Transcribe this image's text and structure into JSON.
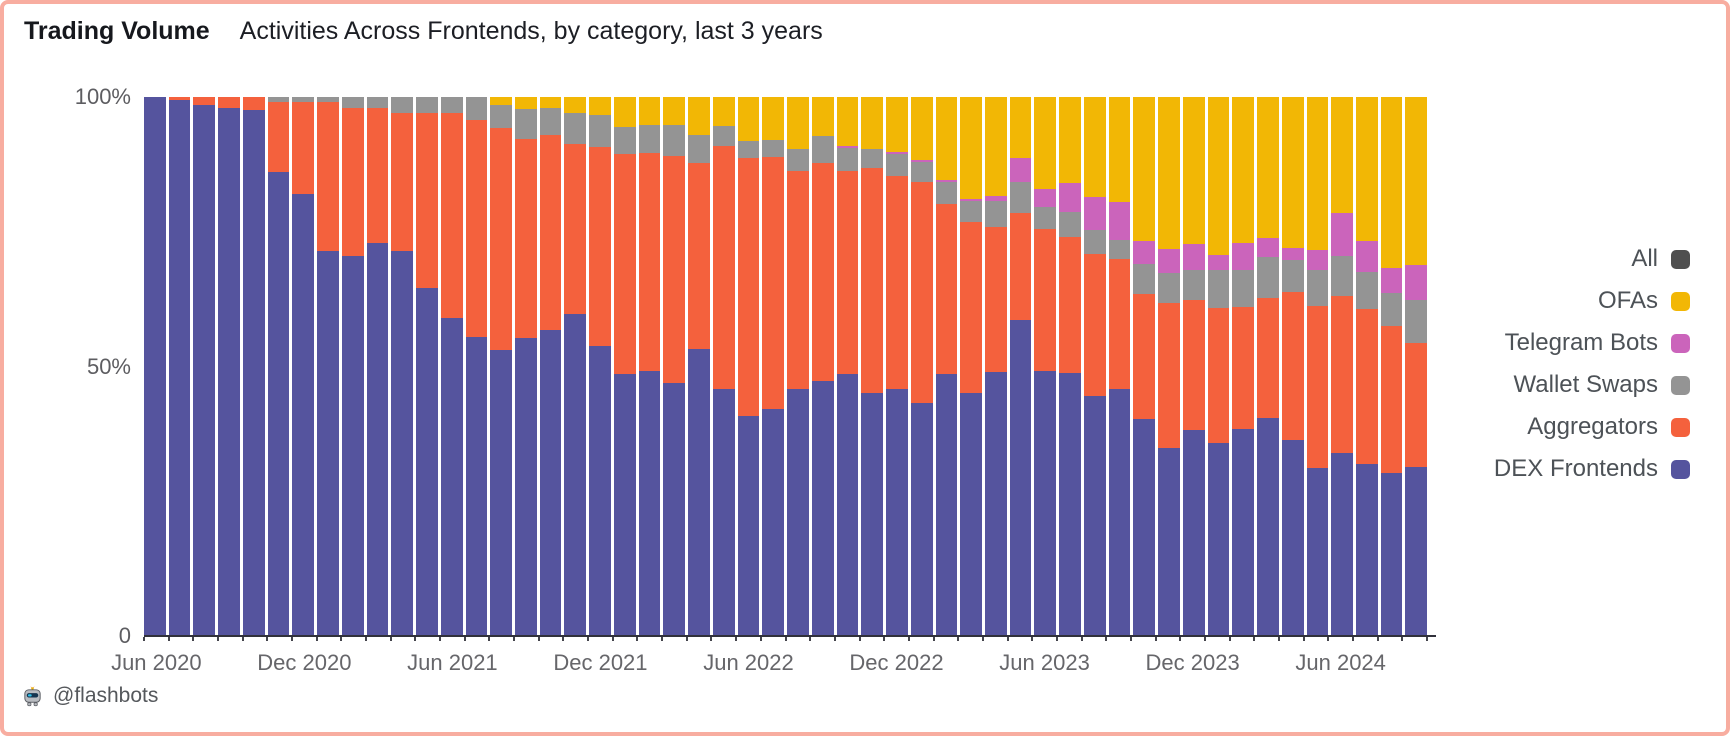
{
  "header": {
    "title": "Trading Volume",
    "subtitle": "Activities Across Frontends, by category, last 3 years"
  },
  "footer": {
    "handle": "@flashbots",
    "logo_icon": "flashbots-robot-icon"
  },
  "colors": {
    "background": "#FFFFFF",
    "frame_border": "#F8ADA0",
    "axis_line": "#31313b",
    "axis_label_text": "#66666a",
    "legend_text": "#4d5257",
    "title_text": "#16181d"
  },
  "legend": {
    "position": "right",
    "items": [
      {
        "label": "All",
        "color": "#4F4F4F"
      },
      {
        "label": "OFAs",
        "color": "#F2B705"
      },
      {
        "label": "Telegram Bots",
        "color": "#CB64BB"
      },
      {
        "label": "Wallet Swaps",
        "color": "#949494"
      },
      {
        "label": "Aggregators",
        "color": "#F4613D"
      },
      {
        "label": "DEX Frontends",
        "color": "#55549E"
      }
    ]
  },
  "chart_data": {
    "type": "bar",
    "stacked": true,
    "y_unit": "percent_share",
    "ylim": [
      0,
      100
    ],
    "grid": false,
    "legend_position": "right",
    "y_ticks": [
      {
        "value": 100,
        "label": "100%"
      },
      {
        "value": 50,
        "label": "50%"
      },
      {
        "value": 0,
        "label": "0"
      }
    ],
    "categories": [
      "Jun 2020",
      "Jul 2020",
      "Aug 2020",
      "Sep 2020",
      "Oct 2020",
      "Nov 2020",
      "Dec 2020",
      "Jan 2021",
      "Feb 2021",
      "Mar 2021",
      "Apr 2021",
      "May 2021",
      "Jun 2021",
      "Jul 2021",
      "Aug 2021",
      "Sep 2021",
      "Oct 2021",
      "Nov 2021",
      "Dec 2021",
      "Jan 2022",
      "Feb 2022",
      "Mar 2022",
      "Apr 2022",
      "May 2022",
      "Jun 2022",
      "Jul 2022",
      "Aug 2022",
      "Sep 2022",
      "Oct 2022",
      "Nov 2022",
      "Dec 2022",
      "Jan 2023",
      "Feb 2023",
      "Mar 2023",
      "Apr 2023",
      "May 2023",
      "Jun 2023",
      "Jul 2023",
      "Aug 2023",
      "Sep 2023",
      "Oct 2023",
      "Nov 2023",
      "Dec 2023",
      "Jan 2024",
      "Feb 2024",
      "Mar 2024",
      "Apr 2024",
      "May 2024",
      "Jun 2024",
      "Jul 2024",
      "Aug 2024",
      "Sep 2024"
    ],
    "x_tick_labels": [
      {
        "index": 0,
        "label": "Jun 2020"
      },
      {
        "index": 6,
        "label": "Dec 2020"
      },
      {
        "index": 12,
        "label": "Jun 2021"
      },
      {
        "index": 18,
        "label": "Dec 2021"
      },
      {
        "index": 24,
        "label": "Jun 2022"
      },
      {
        "index": 30,
        "label": "Dec 2022"
      },
      {
        "index": 36,
        "label": "Jun 2023"
      },
      {
        "index": 42,
        "label": "Dec 2023"
      },
      {
        "index": 48,
        "label": "Jun 2024"
      }
    ],
    "series": [
      {
        "name": "DEX Frontends",
        "color": "#55549E",
        "values": [
          100,
          99.5,
          98.5,
          98,
          97.5,
          86,
          82,
          71.5,
          70.5,
          73,
          71.5,
          64.5,
          59,
          55.5,
          53,
          55.3,
          56.8,
          59.7,
          53.8,
          48.7,
          49.2,
          47,
          53.2,
          45.8,
          40.8,
          42.2,
          45.8,
          47.3,
          48.7,
          45,
          45.8,
          43.3,
          48.7,
          45,
          49,
          58.6,
          49.2,
          48.8,
          44.5,
          45.8,
          40.3,
          34.8,
          38.2,
          35.9,
          38.5,
          40.4,
          36.4,
          31.1,
          33.9,
          31.9,
          30.3,
          31.4
        ]
      },
      {
        "name": "Aggregators",
        "color": "#F4613D",
        "values": [
          0,
          0.5,
          1.5,
          2,
          2.5,
          13,
          17,
          27.5,
          27.5,
          25,
          25.5,
          32.5,
          38,
          40.2,
          41.2,
          37,
          36.2,
          31.6,
          36.9,
          40.7,
          40.4,
          42.1,
          34.6,
          45.2,
          47.9,
          46.7,
          40.4,
          40.5,
          37.5,
          41.8,
          39.5,
          40.9,
          31.5,
          31.9,
          26.8,
          19.8,
          26.3,
          25.3,
          26.4,
          24.1,
          23.2,
          26.9,
          24.1,
          24.9,
          22.6,
          22.3,
          27.5,
          30.1,
          29.2,
          28.7,
          27.2,
          23
        ]
      },
      {
        "name": "Wallet Swaps",
        "color": "#949494",
        "values": [
          0,
          0,
          0,
          0,
          0,
          1,
          1,
          1,
          2,
          2,
          3,
          3,
          3,
          4.3,
          4.3,
          5.4,
          5,
          5.7,
          5.9,
          5.1,
          5.2,
          5.7,
          5.2,
          3.7,
          3.2,
          3.1,
          4.2,
          4.9,
          4.4,
          3.6,
          4.1,
          3.8,
          4.1,
          3.8,
          4.9,
          5.9,
          4.1,
          4.6,
          4.5,
          3.6,
          5.6,
          5.6,
          5.6,
          7.1,
          6.9,
          7.7,
          5.9,
          6.8,
          7.4,
          7,
          6.2,
          8
        ]
      },
      {
        "name": "Telegram Bots",
        "color": "#CB64BB",
        "values": [
          0,
          0,
          0,
          0,
          0,
          0,
          0,
          0,
          0,
          0,
          0,
          0,
          0,
          0,
          0,
          0,
          0,
          0,
          0,
          0,
          0,
          0,
          0,
          0,
          0,
          0,
          0,
          0,
          0.4,
          0,
          0.4,
          0.3,
          0.3,
          0.4,
          1,
          4.3,
          3.3,
          5.3,
          6.1,
          7.1,
          4.2,
          4.6,
          4.9,
          2.8,
          4.9,
          3.4,
          2.2,
          3.7,
          8,
          5.6,
          4.6,
          6.5
        ]
      },
      {
        "name": "OFAs",
        "color": "#F2B705",
        "values": [
          0,
          0,
          0,
          0,
          0,
          0,
          0,
          0,
          0,
          0,
          0,
          0,
          0,
          0,
          1.5,
          2.3,
          2,
          3,
          3.4,
          5.5,
          5.2,
          5.2,
          7,
          5.3,
          8.1,
          8,
          9.6,
          7.3,
          9,
          9.6,
          10.2,
          11.7,
          15.4,
          18.9,
          18.3,
          11.4,
          17.1,
          16,
          18.5,
          19.4,
          26.7,
          28.1,
          27.2,
          29.3,
          27.1,
          26.2,
          28,
          28.3,
          21.5,
          26.8,
          31.7,
          31.1
        ]
      }
    ]
  }
}
